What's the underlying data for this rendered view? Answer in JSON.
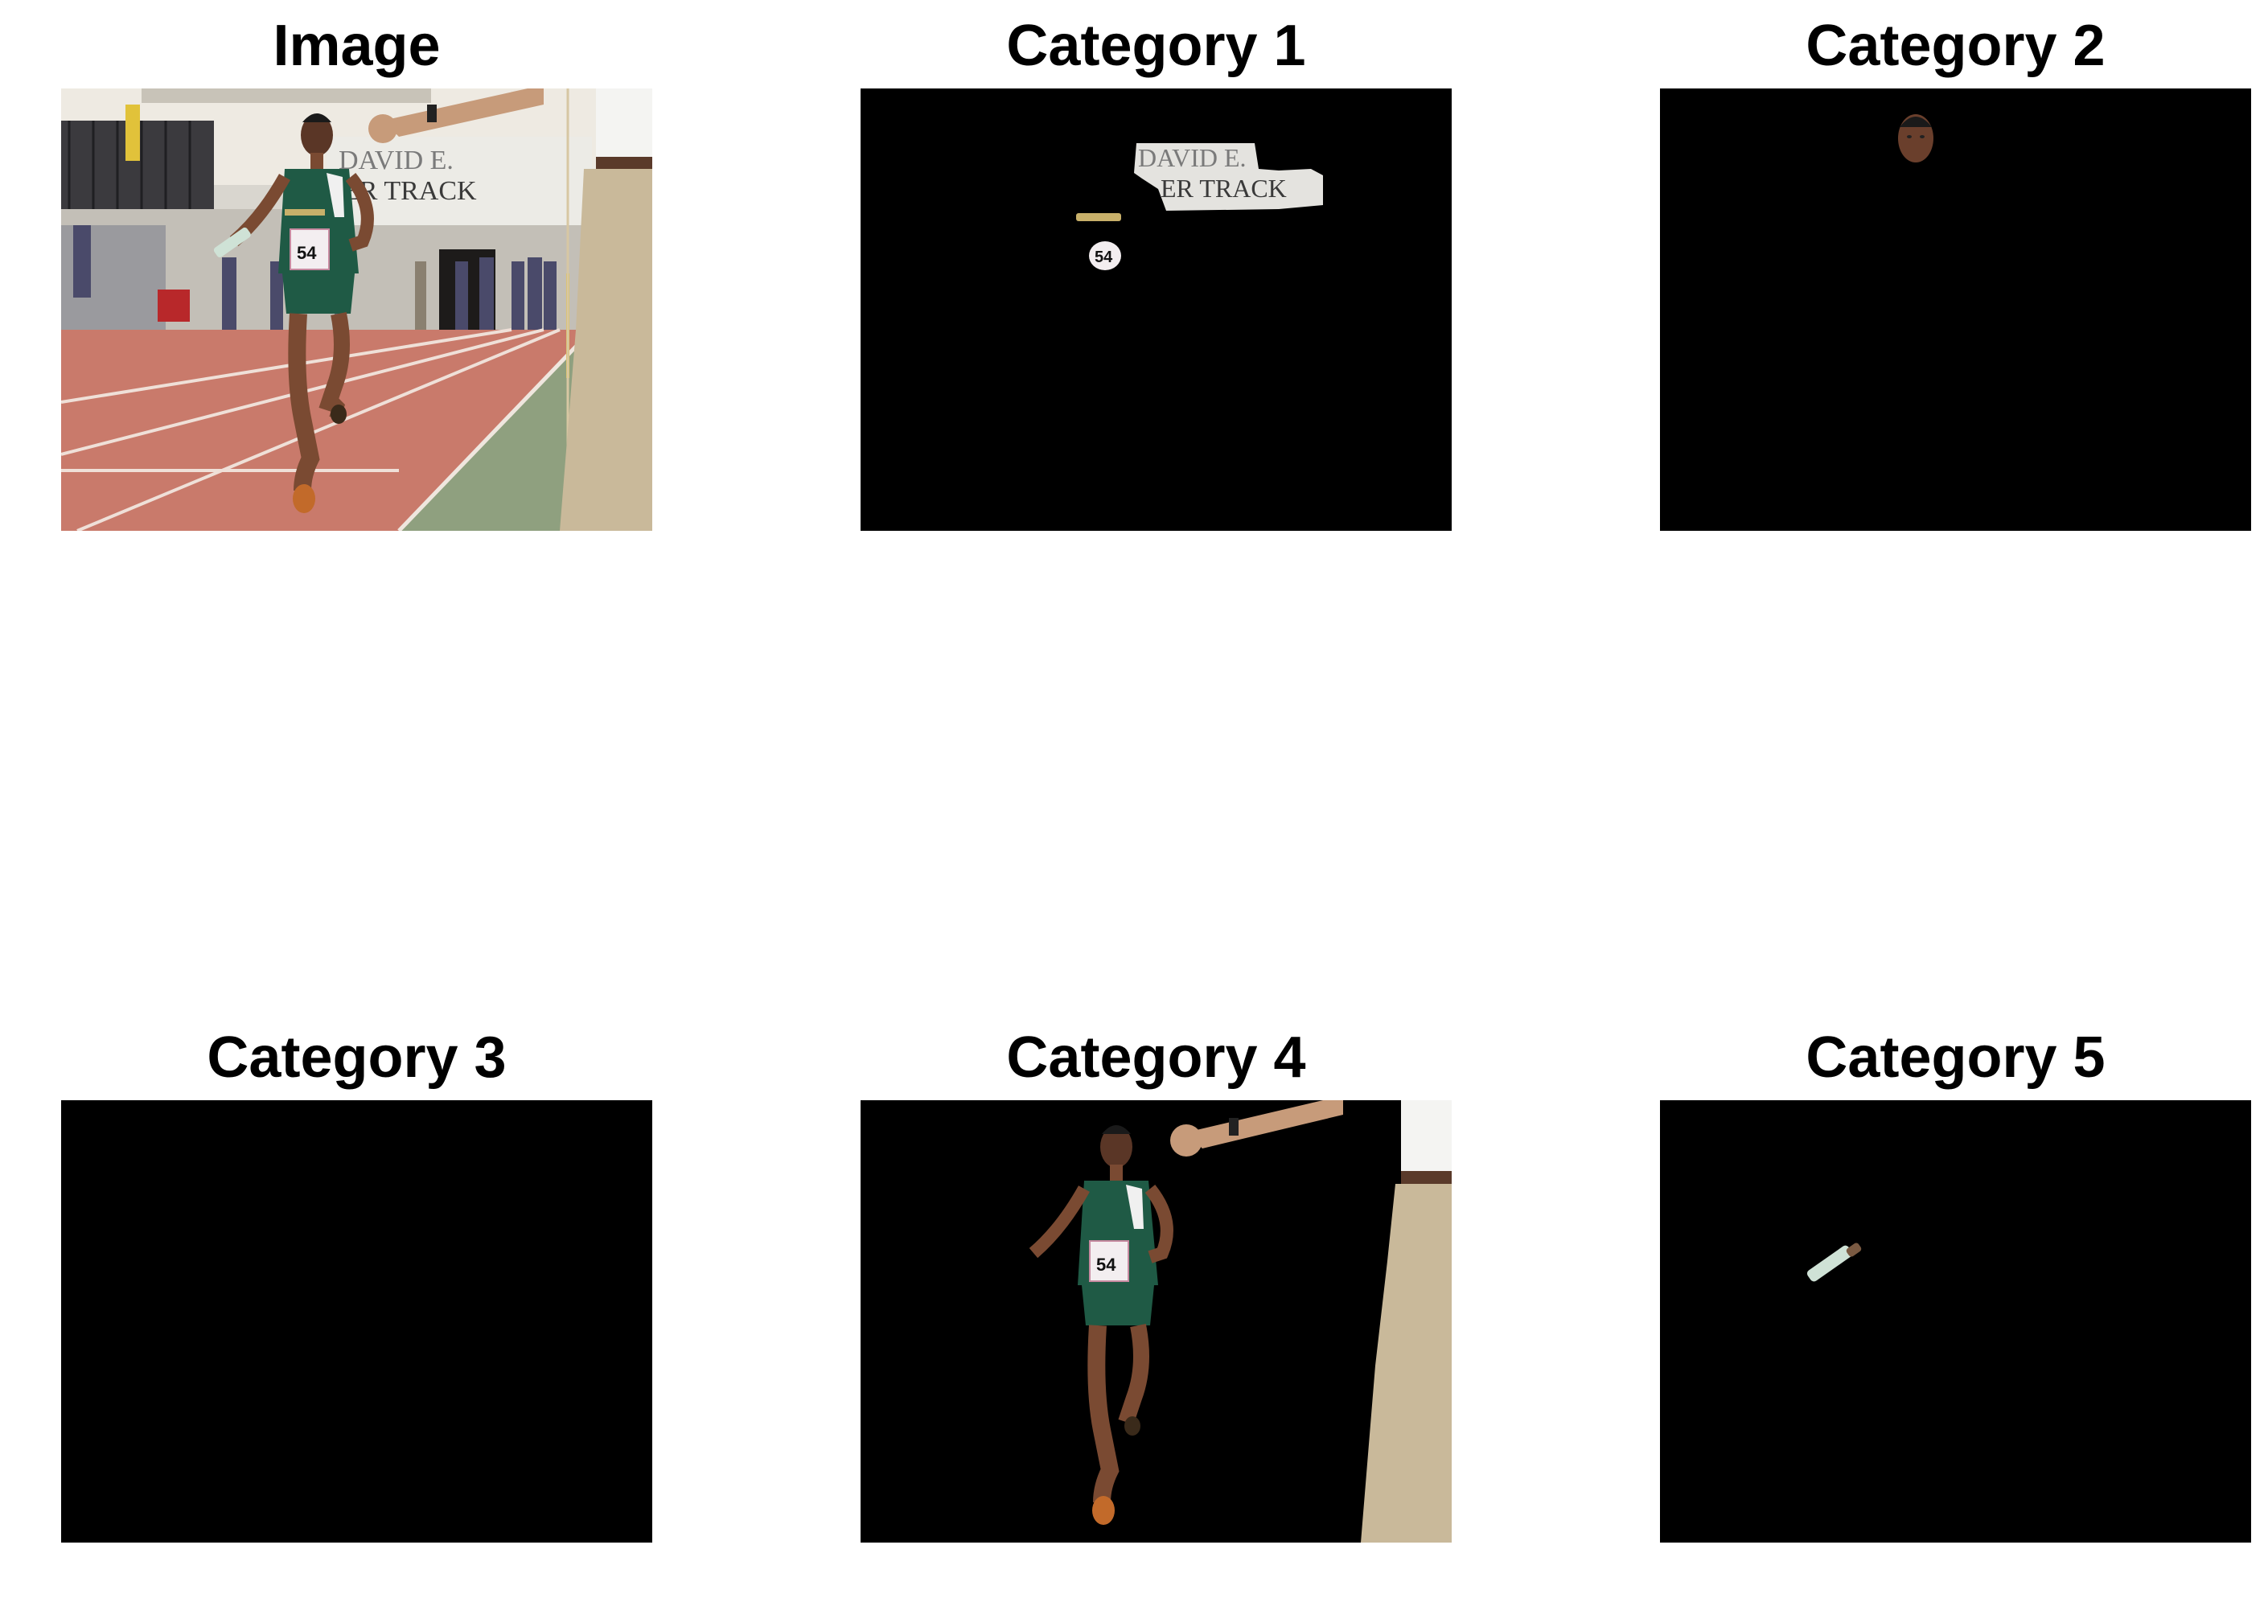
{
  "panels": {
    "image": {
      "title": "Image"
    },
    "cat1": {
      "title": "Category 1"
    },
    "cat2": {
      "title": "Category 2"
    },
    "cat3": {
      "title": "Category 3"
    },
    "cat4": {
      "title": "Category 4"
    },
    "cat5": {
      "title": "Category 5"
    }
  },
  "scene": {
    "banner_line1": "DAVID E.",
    "banner_line2": "ER TRACK",
    "bib_number": "54"
  },
  "colors": {
    "mask_background": "#000000",
    "track": "#c97a6b",
    "infield": "#8fa07f",
    "jersey": "#1f5a45",
    "khaki": "#c9b99a",
    "skin": "#7a4a32"
  }
}
